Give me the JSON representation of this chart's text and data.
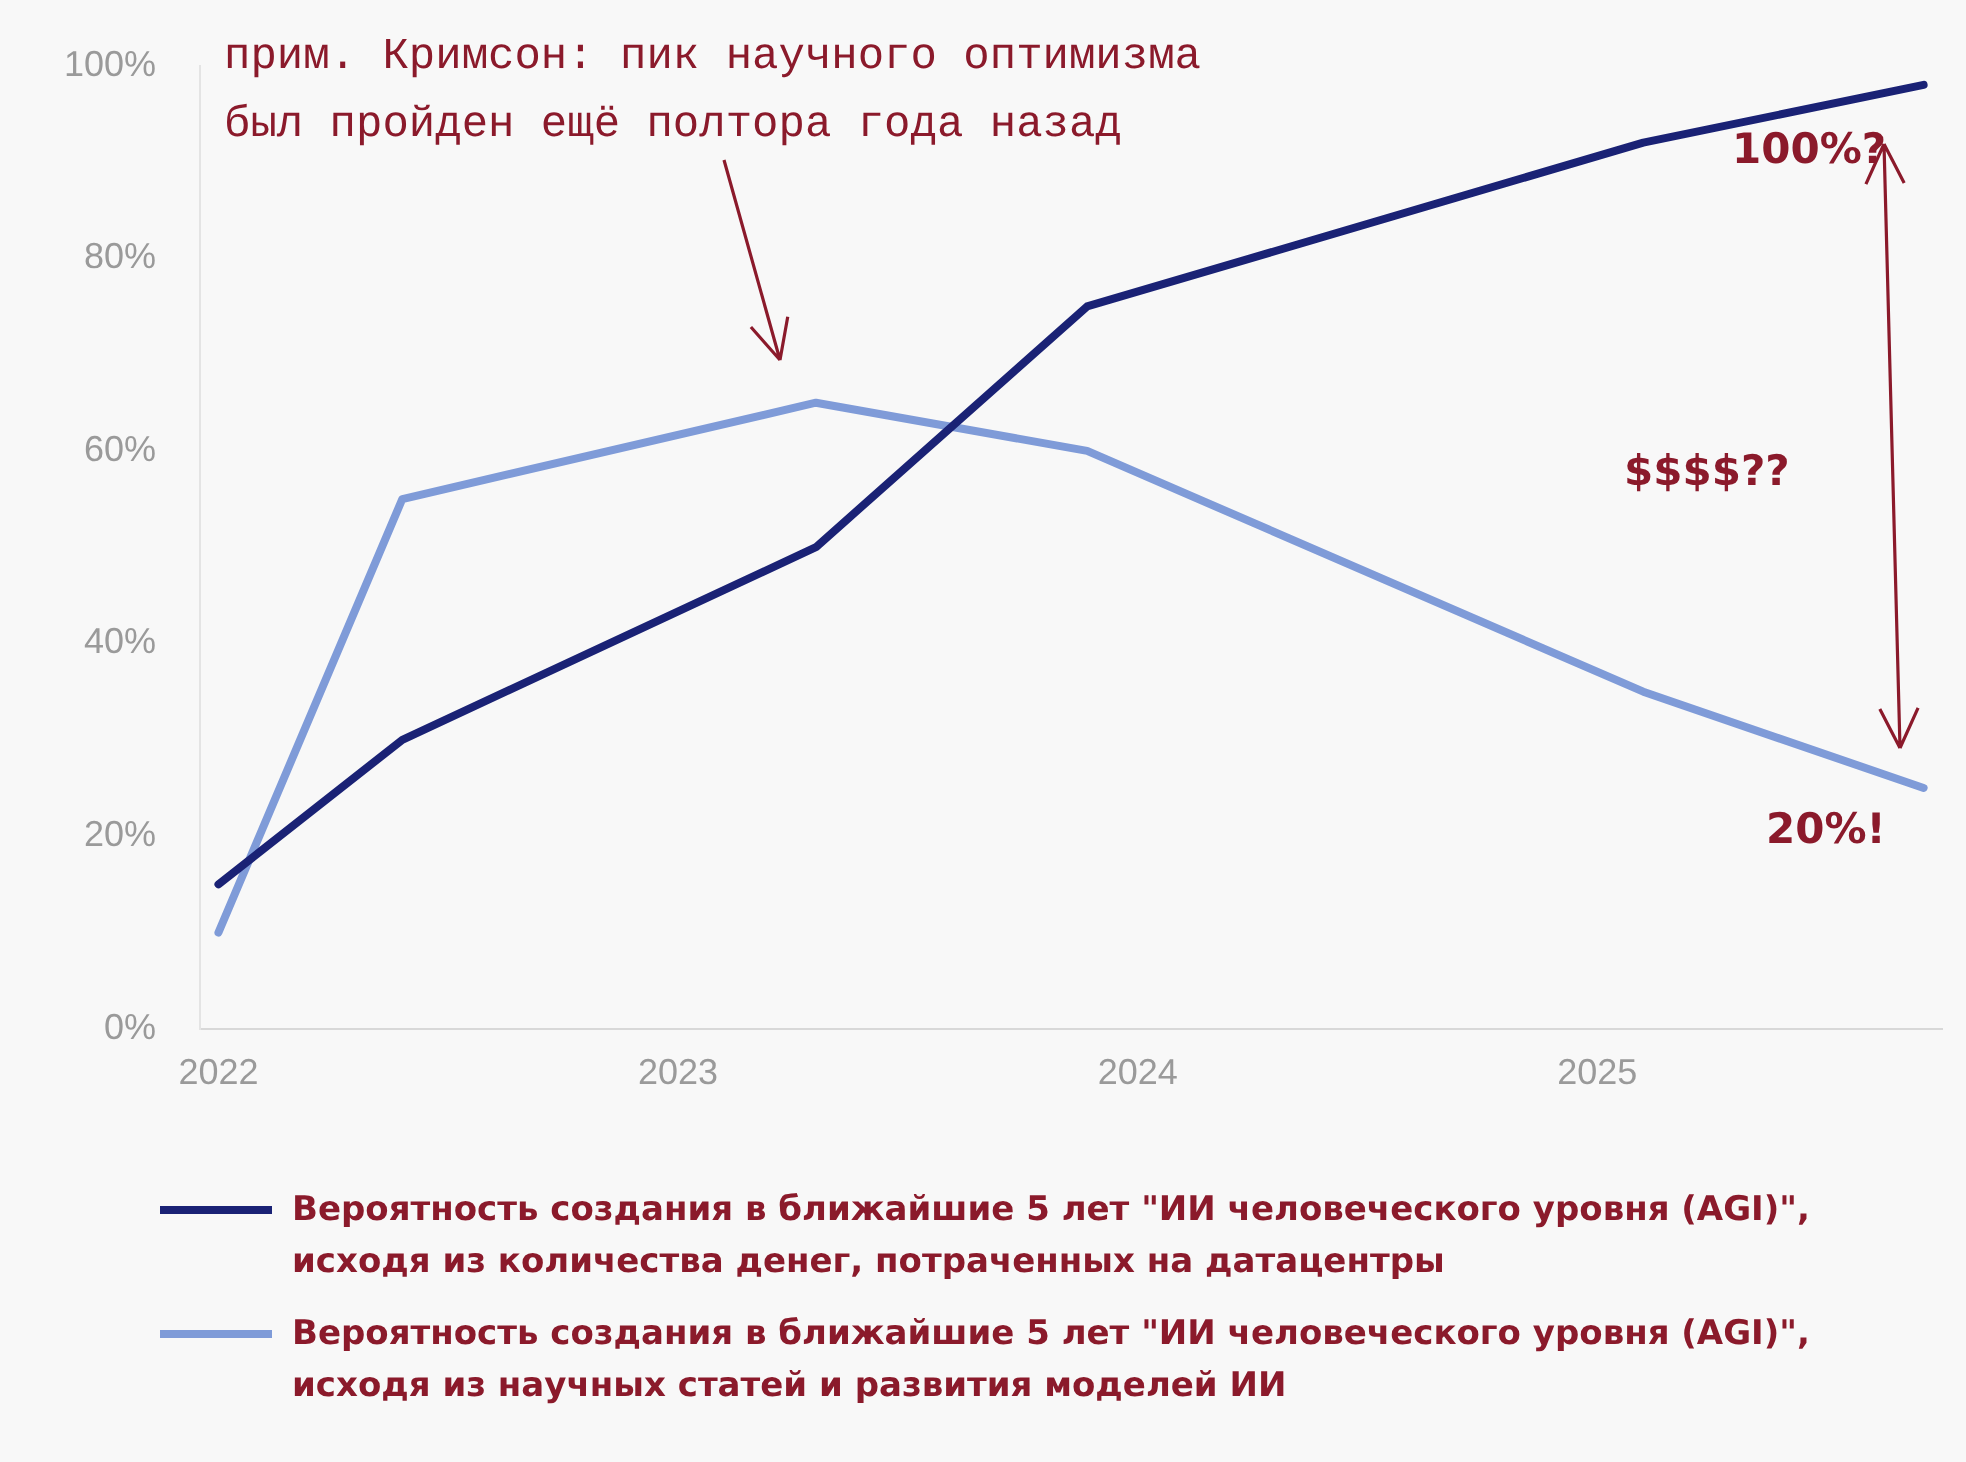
{
  "chart_data": {
    "type": "line",
    "xlim": [
      2021.96,
      2025.75
    ],
    "xticks": [
      2022,
      2023,
      2024,
      2025
    ],
    "ylim": [
      0,
      100
    ],
    "yticks": [
      {
        "value": 0,
        "label": "0%"
      },
      {
        "value": 20,
        "label": "20%"
      },
      {
        "value": 40,
        "label": "40%"
      },
      {
        "value": 60,
        "label": "60%"
      },
      {
        "value": 80,
        "label": "80%"
      },
      {
        "value": 100,
        "label": "100%"
      }
    ],
    "grid": false,
    "legend": "bottom",
    "marker": "none",
    "line_style": "solid",
    "series": [
      {
        "name": "Вероятность создания в ближайшие 5 лет \"ИИ человеческого уровня (AGI)\", исходя из количества денег, потраченных на датацентры",
        "color": "#1a2275",
        "x": [
          2022,
          2022.4,
          2023.3,
          2023.89,
          2025.1,
          2025.71
        ],
        "values": [
          15,
          30,
          50,
          75,
          92,
          98
        ]
      },
      {
        "name": "Вероятность создания в ближайшие 5 лет \"ИИ человеческого уровня (AGI)\", исходя из научных статей и развития моделей ИИ",
        "color": "#7f9bd8",
        "x": [
          2022,
          2022.4,
          2023.3,
          2023.89,
          2025.1,
          2025.71
        ],
        "values": [
          10,
          55,
          65,
          60,
          35,
          25
        ]
      }
    ],
    "annotations": [
      "прим. Кримсон: пик научного оптимизма\nбыл пройден ещё полтора года назад",
      "100%?",
      "$$$$??",
      "20%!"
    ]
  }
}
